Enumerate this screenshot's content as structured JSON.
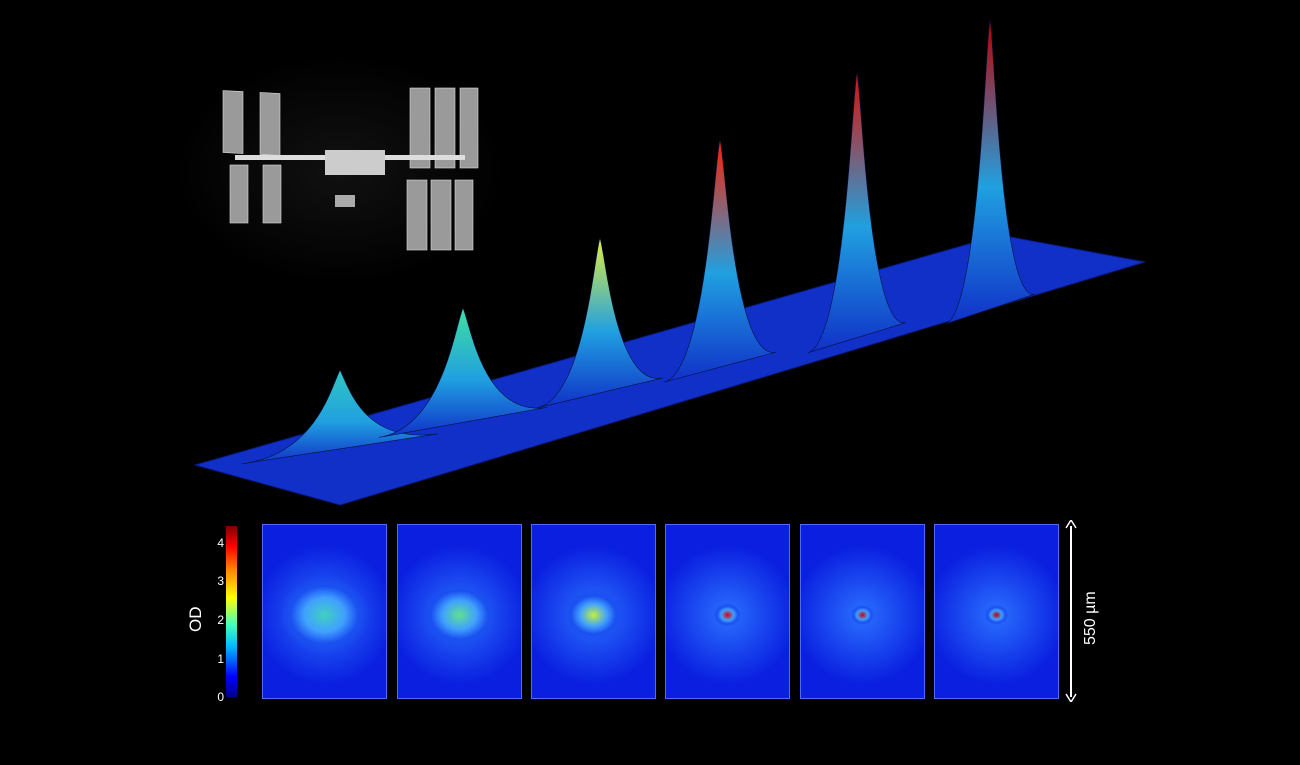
{
  "colorbar": {
    "label": "OD",
    "ticks": [
      "0",
      "1",
      "2",
      "3",
      "4"
    ],
    "colors": [
      "#00008f",
      "#0000ff",
      "#00bfff",
      "#ffff00",
      "#ff0000",
      "#800000"
    ]
  },
  "scale_bar": {
    "label": "550 µm"
  },
  "panels": [
    {
      "peak_color": "#40d0c0"
    },
    {
      "peak_color": "#60e090"
    },
    {
      "peak_color": "#c0f040"
    },
    {
      "peak_color": "#e00000"
    },
    {
      "peak_color": "#d00000"
    },
    {
      "peak_color": "#c00000"
    }
  ],
  "surface_peaks": [
    {
      "color": "#30c8c0"
    },
    {
      "color": "#40e0a0"
    },
    {
      "color": "#e0f040"
    },
    {
      "color": "#ff2000"
    },
    {
      "color": "#e01000"
    },
    {
      "color": "#c00000"
    }
  ],
  "inset": {
    "subject": "International Space Station photo"
  }
}
